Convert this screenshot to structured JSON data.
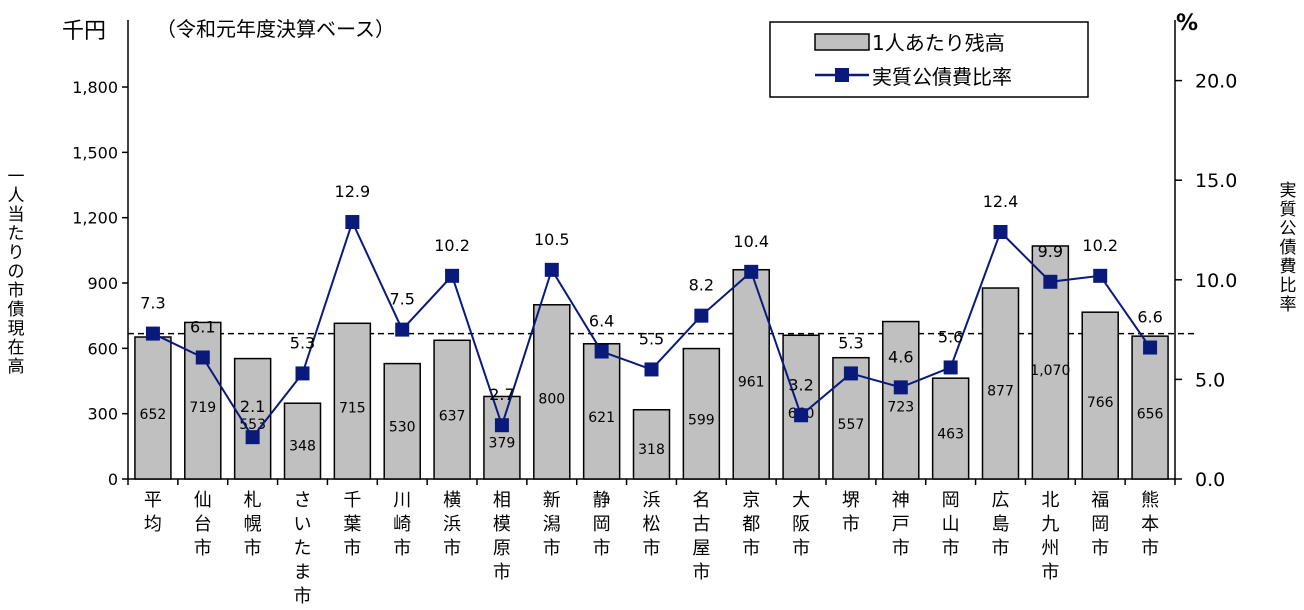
{
  "chart_data": {
    "type": "bar",
    "title": "（令和元年度決算ベース）",
    "left_unit": "千円",
    "right_unit": "%",
    "ylabel": "一人当たりの市債現在高",
    "y2label": "実質公債費比率",
    "categories": [
      "平均",
      "仙台市",
      "札幌市",
      "さいたま市",
      "千葉市",
      "川崎市",
      "横浜市",
      "相模原市",
      "新潟市",
      "静岡市",
      "浜松市",
      "名古屋市",
      "京都市",
      "大阪市",
      "堺市",
      "神戸市",
      "岡山市",
      "広島市",
      "北九州市",
      "福岡市",
      "熊本市"
    ],
    "ylim": [
      0,
      2100
    ],
    "y_ticks": [
      "0",
      "300",
      "600",
      "900",
      "1,200",
      "1,500",
      "1,800"
    ],
    "y2lim": [
      0,
      21.0
    ],
    "y2_ticks": [
      "0.0",
      "5.0",
      "10.0",
      "15.0",
      "20.0"
    ],
    "reference_line_value": 7.3,
    "legend_position": "top-right",
    "grid": false,
    "series": [
      {
        "name": "1人あたり残高",
        "type": "bar",
        "axis": "left",
        "color": "#c0c0c0",
        "values": [
          652,
          719,
          553,
          348,
          715,
          530,
          637,
          379,
          800,
          621,
          318,
          599,
          961,
          660,
          557,
          723,
          463,
          877,
          1070,
          766,
          656
        ],
        "labels": [
          "652",
          "719",
          "553",
          "348",
          "715",
          "530",
          "637",
          "379",
          "800",
          "621",
          "318",
          "599",
          "961",
          "660",
          "557",
          "723",
          "463",
          "877",
          "1,070",
          "766",
          "656"
        ]
      },
      {
        "name": "実質公債費比率",
        "type": "line",
        "axis": "right",
        "color": "#0a1a7a",
        "values": [
          7.3,
          6.1,
          2.1,
          5.3,
          12.9,
          7.5,
          10.2,
          2.7,
          10.5,
          6.4,
          5.5,
          8.2,
          10.4,
          3.2,
          5.3,
          4.6,
          5.6,
          12.4,
          9.9,
          10.2,
          6.6
        ],
        "labels": [
          "7.3",
          "6.1",
          "2.1",
          "5.3",
          "12.9",
          "7.5",
          "10.2",
          "2.7",
          "10.5",
          "6.4",
          "5.5",
          "8.2",
          "10.4",
          "3.2",
          "5.3",
          "4.6",
          "5.6",
          "12.4",
          "9.9",
          "10.2",
          "6.6"
        ]
      }
    ]
  }
}
